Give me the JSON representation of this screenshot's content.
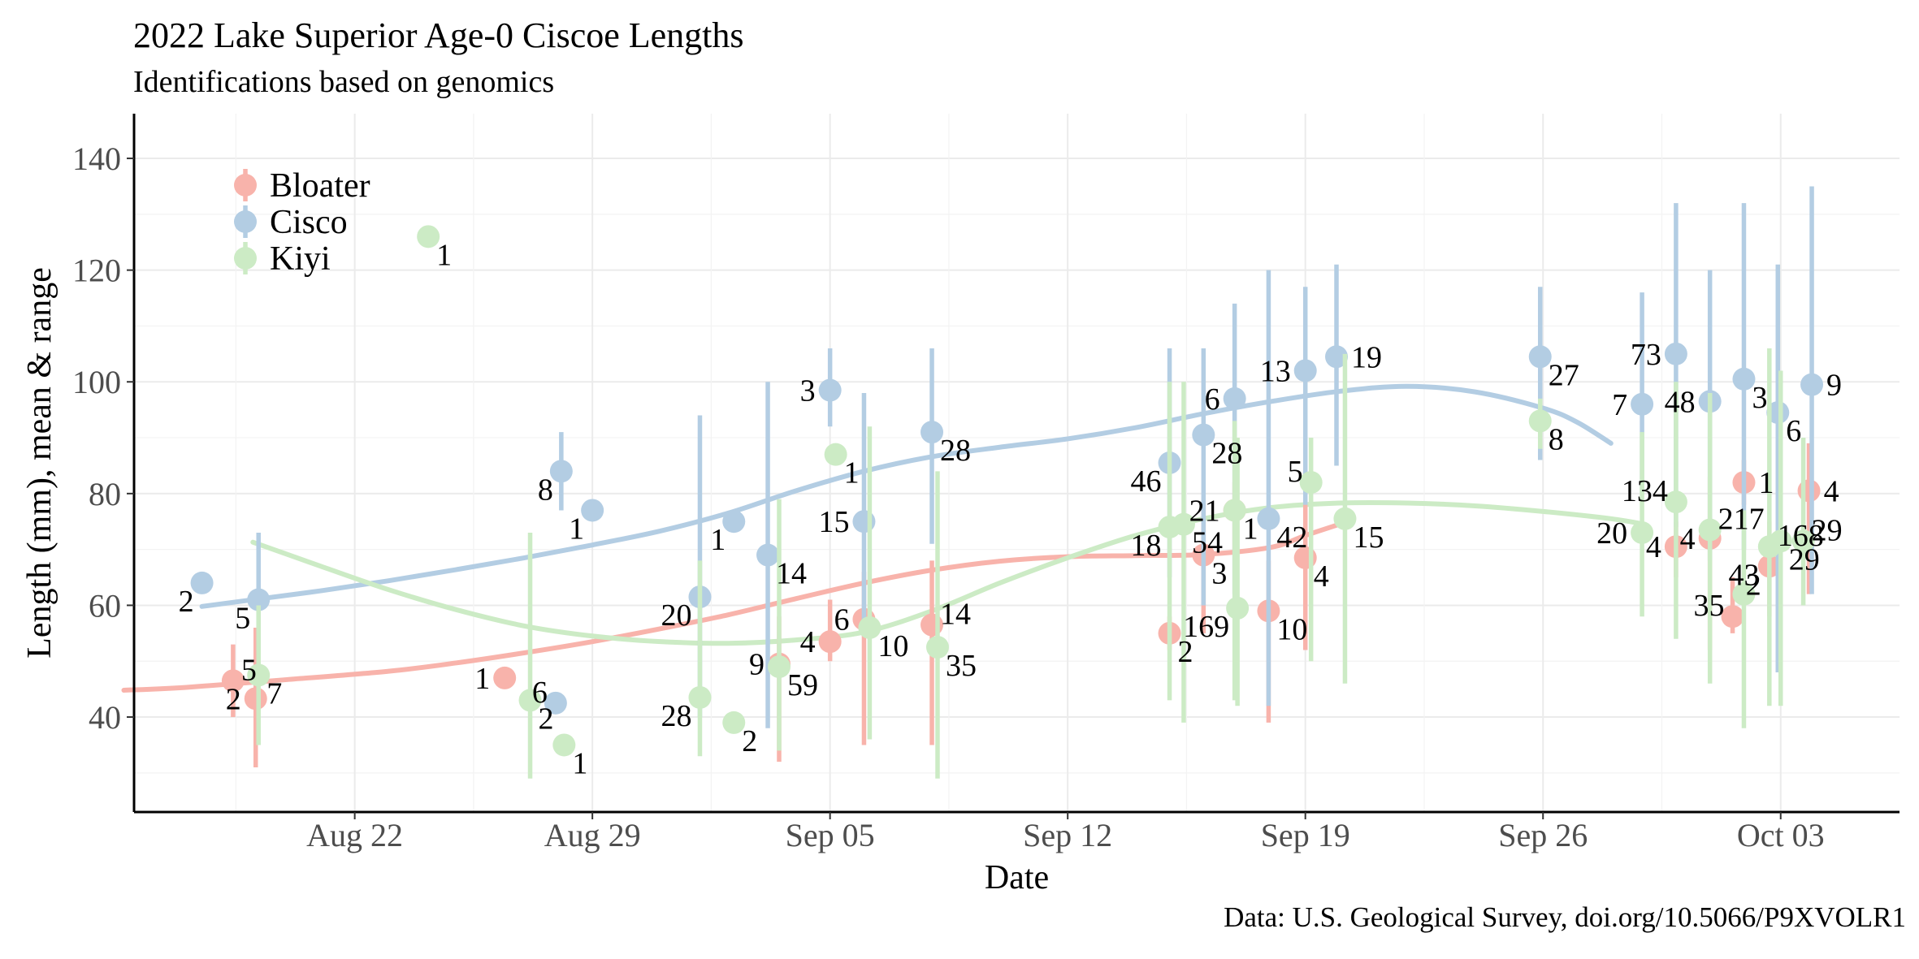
{
  "chart_data": {
    "type": "scatter",
    "title": "2022 Lake Superior Age-0 Ciscoe Lengths",
    "subtitle": "Identifications based on genomics",
    "caption": "Data: U.S. Geological Survey, doi.org/10.5066/P9XVOLR1",
    "xlabel": "Date",
    "ylabel": "Length (mm), mean & range",
    "xlim": [
      "2022-08-15T12:00",
      "2022-10-06T12:00"
    ],
    "ylim": [
      23,
      148
    ],
    "x_ticks": [
      {
        "date": "2022-08-22",
        "label": "Aug 22"
      },
      {
        "date": "2022-08-29",
        "label": "Aug 29"
      },
      {
        "date": "2022-09-05",
        "label": "Sep 05"
      },
      {
        "date": "2022-09-12",
        "label": "Sep 12"
      },
      {
        "date": "2022-09-19",
        "label": "Sep 19"
      },
      {
        "date": "2022-09-26",
        "label": "Sep 26"
      },
      {
        "date": "2022-10-03",
        "label": "Oct 03"
      }
    ],
    "y_ticks": [
      40,
      60,
      80,
      100,
      120,
      140
    ],
    "grid": true,
    "legend_position": "top-left",
    "series": [
      {
        "name": "Bloater",
        "color": "#F8B3AB",
        "points": [
          {
            "x": "2022-08-18T10:00",
            "y": 46.5,
            "min": 40,
            "max": 53,
            "n": "5",
            "lp": "ne"
          },
          {
            "x": "2022-08-19T02:00",
            "y": 43.3,
            "min": 31,
            "max": 56,
            "n": "2",
            "lp": "w"
          },
          {
            "x": "2022-08-26T10:00",
            "y": 47,
            "min": 46,
            "max": 48,
            "n": "1",
            "lp": "w"
          },
          {
            "x": "2022-09-03T12:00",
            "y": 49.5,
            "min": 32,
            "max": 58,
            "n": "9",
            "lp": "w"
          },
          {
            "x": "2022-09-05T00:00",
            "y": 53.5,
            "min": 50,
            "max": 61,
            "n": "4",
            "lp": "w"
          },
          {
            "x": "2022-09-06T00:00",
            "y": 57.5,
            "min": 35,
            "max": 66,
            "n": "6",
            "lp": "w"
          },
          {
            "x": "2022-09-08T00:00",
            "y": 56.5,
            "min": 35,
            "max": 68,
            "n": "14",
            "lp": "ne"
          },
          {
            "x": "2022-09-15T00:00",
            "y": 55,
            "min": 52,
            "max": 58,
            "n": "2",
            "lp": "se"
          },
          {
            "x": "2022-09-16T00:00",
            "y": 69,
            "min": 55,
            "max": 78,
            "n": "3",
            "lp": "se"
          },
          {
            "x": "2022-09-16T22:00",
            "y": 77,
            "min": 70,
            "max": 82,
            "n": "1",
            "lp": "se"
          },
          {
            "x": "2022-09-17T22:00",
            "y": 59,
            "min": 39,
            "max": 68,
            "n": "10",
            "lp": "se"
          },
          {
            "x": "2022-09-19T00:00",
            "y": 68.5,
            "min": 52,
            "max": 78,
            "n": "4",
            "lp": "se"
          },
          {
            "x": "2022-09-29T22:00",
            "y": 70.5,
            "min": 65,
            "max": 75,
            "n": "4",
            "lp": "w"
          },
          {
            "x": "2022-09-30T22:00",
            "y": 72,
            "min": 52,
            "max": 83,
            "n": "4",
            "lp": "w"
          },
          {
            "x": "2022-10-01T14:00",
            "y": 58,
            "min": 55,
            "max": 65,
            "n": "35",
            "lp": "nw"
          },
          {
            "x": "2022-10-01T22:00",
            "y": 82,
            "min": 78,
            "max": 86,
            "n": "1",
            "lp": "e"
          },
          {
            "x": "2022-10-02T16:00",
            "y": 67,
            "min": 58,
            "max": 75,
            "n": "2",
            "lp": "sw"
          },
          {
            "x": "2022-10-03T20:00",
            "y": 80.5,
            "min": 62,
            "max": 89,
            "n": "4",
            "lp": "e"
          }
        ],
        "trend": [
          [
            15.2,
            44.8
          ],
          [
            17,
            45.3
          ],
          [
            20,
            46.7
          ],
          [
            23,
            48.2
          ],
          [
            25,
            49.7
          ],
          [
            27,
            51.5
          ],
          [
            29,
            53.5
          ],
          [
            31,
            55.8
          ],
          [
            33,
            58.3
          ],
          [
            35,
            61.2
          ],
          [
            37,
            64
          ],
          [
            39,
            66.3
          ],
          [
            41,
            67.9
          ],
          [
            43,
            68.7
          ],
          [
            45,
            68.9
          ],
          [
            47,
            69.1
          ],
          [
            49,
            70.4
          ],
          [
            50,
            72.5
          ],
          [
            51,
            74.5
          ]
        ]
      },
      {
        "name": "Cisco",
        "color": "#B3CDE3",
        "points": [
          {
            "x": "2022-08-17T12:00",
            "y": 64,
            "min": 64,
            "max": 64,
            "n": "2",
            "lp": "sw"
          },
          {
            "x": "2022-08-19T04:00",
            "y": 61,
            "min": 52,
            "max": 73,
            "n": "5",
            "lp": "sw"
          },
          {
            "x": "2022-08-27T22:00",
            "y": 42.5,
            "min": 42,
            "max": 43,
            "n": "6",
            "lp": "nw"
          },
          {
            "x": "2022-08-28T02:00",
            "y": 84,
            "min": 77,
            "max": 91,
            "n": "8",
            "lp": "sw"
          },
          {
            "x": "2022-08-29T00:00",
            "y": 77,
            "min": 77,
            "max": 77,
            "n": "1",
            "lp": "sw"
          },
          {
            "x": "2022-09-01T04:00",
            "y": 61.5,
            "min": 40,
            "max": 94,
            "n": "20",
            "lp": "sw"
          },
          {
            "x": "2022-09-02T04:00",
            "y": 75,
            "min": 75,
            "max": 75,
            "n": "1",
            "lp": "sw"
          },
          {
            "x": "2022-09-03T04:00",
            "y": 69,
            "min": 38,
            "max": 100,
            "n": "14",
            "lp": "se"
          },
          {
            "x": "2022-09-05T00:00",
            "y": 98.5,
            "min": 92,
            "max": 106,
            "n": "3",
            "lp": "w"
          },
          {
            "x": "2022-09-06T00:00",
            "y": 75,
            "min": 57,
            "max": 98,
            "n": "15",
            "lp": "w"
          },
          {
            "x": "2022-09-08T00:00",
            "y": 91,
            "min": 71,
            "max": 106,
            "n": "28",
            "lp": "se"
          },
          {
            "x": "2022-09-15T00:00",
            "y": 85.5,
            "min": 65,
            "max": 106,
            "n": "46",
            "lp": "sw"
          },
          {
            "x": "2022-09-16T00:00",
            "y": 90.5,
            "min": 60,
            "max": 106,
            "n": "28",
            "lp": "se"
          },
          {
            "x": "2022-09-16T22:00",
            "y": 97,
            "min": 62,
            "max": 114,
            "n": "6",
            "lp": "w"
          },
          {
            "x": "2022-09-17T22:00",
            "y": 75.5,
            "min": 42,
            "max": 120,
            "n": "42",
            "lp": "se"
          },
          {
            "x": "2022-09-19T00:00",
            "y": 102,
            "min": 78,
            "max": 117,
            "n": "13",
            "lp": "w"
          },
          {
            "x": "2022-09-19T22:00",
            "y": 104.5,
            "min": 85,
            "max": 121,
            "n": "19",
            "lp": "e"
          },
          {
            "x": "2022-09-25T22:00",
            "y": 104.5,
            "min": 86,
            "max": 117,
            "n": "27",
            "lp": "se"
          },
          {
            "x": "2022-09-28T22:00",
            "y": 96,
            "min": 80,
            "max": 116,
            "n": "7",
            "lp": "w"
          },
          {
            "x": "2022-09-29T22:00",
            "y": 105,
            "min": 74,
            "max": 132,
            "n": "73",
            "lp": "w"
          },
          {
            "x": "2022-09-30T22:00",
            "y": 96.5,
            "min": 68,
            "max": 120,
            "n": "48",
            "lp": "w"
          },
          {
            "x": "2022-10-01T22:00",
            "y": 100.5,
            "min": 70,
            "max": 132,
            "n": "3",
            "lp": "se"
          },
          {
            "x": "2022-10-02T22:00",
            "y": 94.5,
            "min": 48,
            "max": 121,
            "n": "6",
            "lp": "se"
          },
          {
            "x": "2022-10-03T22:00",
            "y": 99.5,
            "min": 62,
            "max": 135,
            "n": "9",
            "lp": "e"
          }
        ],
        "trend": [
          [
            17.5,
            59.8
          ],
          [
            19,
            61
          ],
          [
            21,
            62.6
          ],
          [
            23,
            64.4
          ],
          [
            25,
            66.4
          ],
          [
            27,
            68.5
          ],
          [
            29,
            70.8
          ],
          [
            31,
            73.3
          ],
          [
            33,
            76.5
          ],
          [
            35,
            80.5
          ],
          [
            37,
            84
          ],
          [
            39,
            86.6
          ],
          [
            41,
            88.3
          ],
          [
            43,
            89.8
          ],
          [
            45,
            91.8
          ],
          [
            47,
            94.3
          ],
          [
            49,
            96.5
          ],
          [
            51,
            98.3
          ],
          [
            53,
            99.2
          ],
          [
            55,
            98.2
          ],
          [
            57,
            95.3
          ],
          [
            58,
            92.8
          ],
          [
            59,
            89
          ]
        ]
      },
      {
        "name": "Kiyi",
        "color": "#CCEBC5",
        "points": [
          {
            "x": "2022-08-19T04:00",
            "y": 47.5,
            "min": 35,
            "max": 60,
            "n": "7",
            "lp": "se"
          },
          {
            "x": "2022-08-24T04:00",
            "y": 126,
            "min": 126,
            "max": 126,
            "n": "1",
            "lp": "se"
          },
          {
            "x": "2022-08-27T04:00",
            "y": 43,
            "min": 29,
            "max": 73,
            "n": "2",
            "lp": "se"
          },
          {
            "x": "2022-08-28T04:00",
            "y": 35,
            "min": 35,
            "max": 35,
            "n": "1",
            "lp": "se"
          },
          {
            "x": "2022-09-01T04:00",
            "y": 43.5,
            "min": 33,
            "max": 68,
            "n": "28",
            "lp": "sw"
          },
          {
            "x": "2022-09-02T04:00",
            "y": 39,
            "min": 39,
            "max": 39,
            "n": "2",
            "lp": "se"
          },
          {
            "x": "2022-09-03T12:00",
            "y": 49,
            "min": 34,
            "max": 79,
            "n": "59",
            "lp": "se"
          },
          {
            "x": "2022-09-05T04:00",
            "y": 87,
            "min": 87,
            "max": 87,
            "n": "1",
            "lp": "se"
          },
          {
            "x": "2022-09-06T04:00",
            "y": 56,
            "min": 36,
            "max": 92,
            "n": "10",
            "lp": "se"
          },
          {
            "x": "2022-09-08T04:00",
            "y": 52.5,
            "min": 29,
            "max": 84,
            "n": "35",
            "lp": "se"
          },
          {
            "x": "2022-09-15T00:00",
            "y": 74,
            "min": 43,
            "max": 100,
            "n": "18",
            "lp": "sw"
          },
          {
            "x": "2022-09-15T10:00",
            "y": 74.5,
            "min": 39,
            "max": 100,
            "n": "54",
            "lp": "se"
          },
          {
            "x": "2022-09-16T22:00",
            "y": 77,
            "min": 43,
            "max": 93,
            "n": "21",
            "lp": "w"
          },
          {
            "x": "2022-09-17T00:00",
            "y": 59.5,
            "min": 42,
            "max": 90,
            "n": "169",
            "lp": "sw"
          },
          {
            "x": "2022-09-19T04:00",
            "y": 82,
            "min": 50,
            "max": 90,
            "n": "5",
            "lp": "nw"
          },
          {
            "x": "2022-09-20T04:00",
            "y": 75.5,
            "min": 46,
            "max": 105,
            "n": "15",
            "lp": "se"
          },
          {
            "x": "2022-09-25T22:00",
            "y": 93,
            "min": 88,
            "max": 97,
            "n": "8",
            "lp": "se"
          },
          {
            "x": "2022-09-28T22:00",
            "y": 73,
            "min": 58,
            "max": 91,
            "n": "20",
            "lp": "w"
          },
          {
            "x": "2022-09-29T22:00",
            "y": 78.5,
            "min": 54,
            "max": 100,
            "n": "134",
            "lp": "nw"
          },
          {
            "x": "2022-09-30T22:00",
            "y": 73.5,
            "min": 46,
            "max": 98,
            "n": "217",
            "lp": "ne"
          },
          {
            "x": "2022-10-01T22:00",
            "y": 62,
            "min": 38,
            "max": 77,
            "n": "43",
            "lp": "n"
          },
          {
            "x": "2022-10-02T16:00",
            "y": 70.5,
            "min": 42,
            "max": 106,
            "n": "168",
            "lp": "ne"
          },
          {
            "x": "2022-10-03T00:00",
            "y": 71.5,
            "min": 42,
            "max": 102,
            "n": "29",
            "lp": "se"
          },
          {
            "x": "2022-10-03T16:00",
            "y": 71.5,
            "min": 60,
            "max": 90,
            "n": "29",
            "lp": "ne"
          }
        ],
        "trend": [
          [
            19,
            71.3
          ],
          [
            21,
            67
          ],
          [
            23,
            62.8
          ],
          [
            25,
            59.2
          ],
          [
            27,
            56.3
          ],
          [
            29,
            54.5
          ],
          [
            31,
            53.5
          ],
          [
            33,
            53.2
          ],
          [
            35,
            53.8
          ],
          [
            37,
            55.2
          ],
          [
            39,
            59
          ],
          [
            41,
            64
          ],
          [
            43,
            68.5
          ],
          [
            45,
            72.5
          ],
          [
            47,
            75.5
          ],
          [
            49,
            77.5
          ],
          [
            51,
            78.3
          ],
          [
            53,
            78.3
          ],
          [
            55,
            77.8
          ],
          [
            57,
            76.8
          ],
          [
            59,
            75.5
          ],
          [
            60,
            74.5
          ]
        ]
      }
    ]
  }
}
